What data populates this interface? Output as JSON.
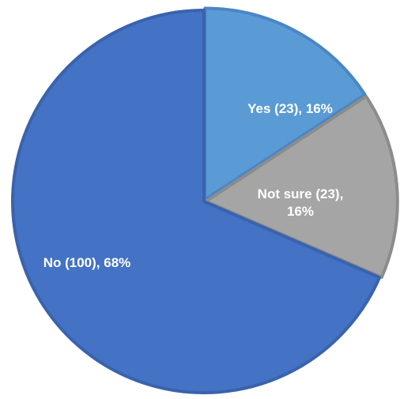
{
  "chart_data": {
    "type": "pie",
    "title": "",
    "slices": [
      {
        "label": "Yes (23), 16%",
        "label_lines": [
          "Yes (23), 16%"
        ],
        "value": 23,
        "percent": 16,
        "color": "#5b9bd5",
        "stroke": "#4a86c4",
        "offset": true
      },
      {
        "label": "Not sure (23), 16%",
        "label_lines": [
          "Not sure (23),",
          "16%"
        ],
        "value": 23,
        "percent": 16,
        "color": "#a5a5a5",
        "stroke": "#8c8c8c",
        "offset": true
      },
      {
        "label": "No (100), 68%",
        "label_lines": [
          "No (100), 68%"
        ],
        "value": 100,
        "percent": 68,
        "color": "#4472c4",
        "stroke": "#3a63ad",
        "offset": false
      }
    ],
    "start_angle": "12 o'clock, clockwise",
    "legend": "none"
  }
}
